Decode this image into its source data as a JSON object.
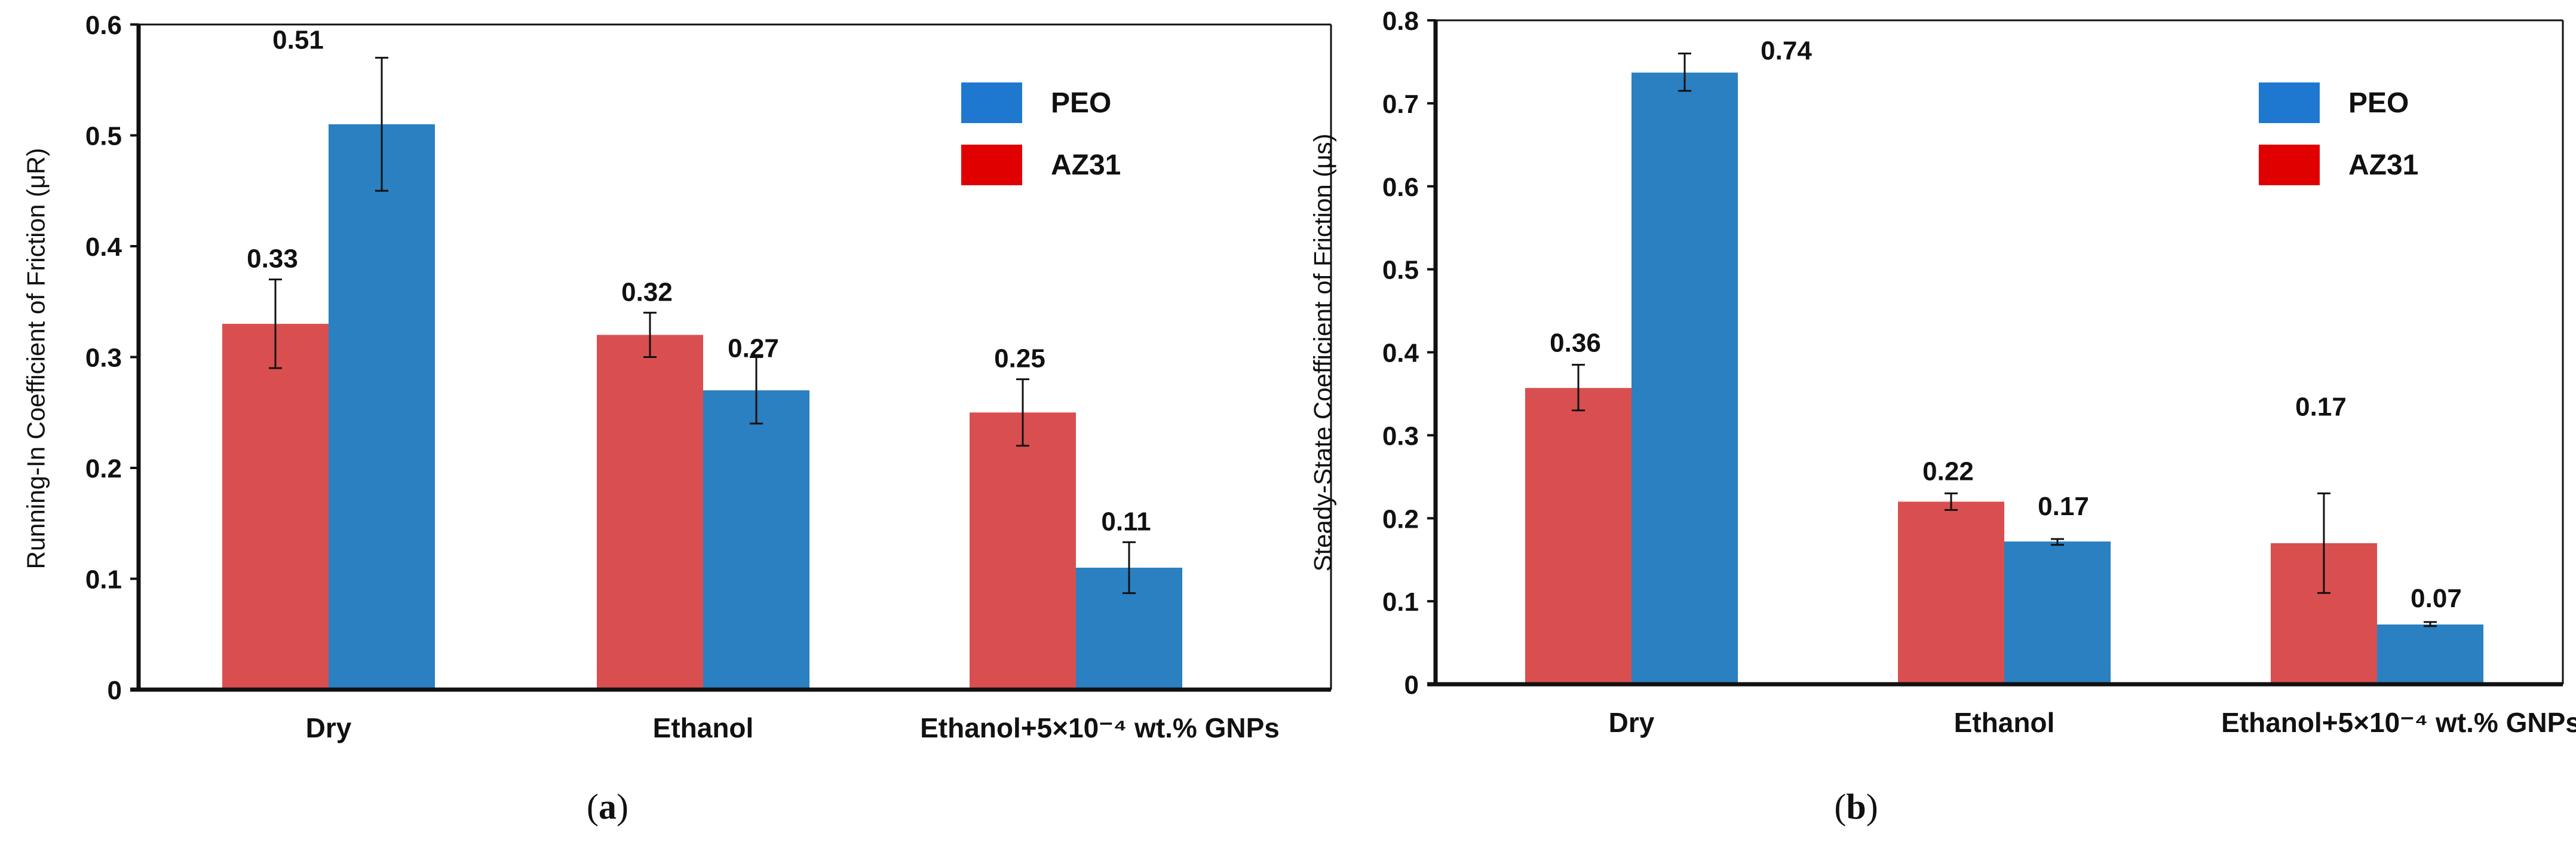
{
  "colors": {
    "AZ31": "#d94f4f",
    "PEO": "#2a80c0",
    "legend_AZ31": "#e00000",
    "legend_PEO": "#1f78d0"
  },
  "chart_data": [
    {
      "type": "bar",
      "caption_prefix": "(",
      "caption": "a",
      "caption_suffix": ")",
      "ylabel": "Running-In Coefficient of Friction (μR)",
      "ylim": [
        0,
        0.6
      ],
      "yticks": [
        "0",
        "0.1",
        "0.2",
        "0.3",
        "0.4",
        "0.5",
        "0.6"
      ],
      "categories": [
        "Dry",
        "Ethanol",
        "Ethanol+5×10⁻⁴ wt.% GNPs"
      ],
      "legend": [
        "PEO",
        "AZ31"
      ],
      "legend_position": "top-right",
      "series": [
        {
          "name": "AZ31",
          "values": [
            0.33,
            0.32,
            0.25
          ],
          "labels": [
            "0.33",
            "0.32",
            "0.25"
          ],
          "err_low": [
            0.29,
            0.3,
            0.22
          ],
          "err_high": [
            0.37,
            0.34,
            0.28
          ]
        },
        {
          "name": "PEO",
          "values": [
            0.51,
            0.27,
            0.11
          ],
          "labels": [
            "0.51",
            "0.27",
            "0.11"
          ],
          "err_low": [
            0.45,
            0.24,
            0.087
          ],
          "err_high": [
            0.57,
            0.3,
            0.133
          ]
        }
      ]
    },
    {
      "type": "bar",
      "caption_prefix": "(",
      "caption": "b",
      "caption_suffix": ")",
      "ylabel": "Steady-State Coefficient of Friction (μs)",
      "ylim": [
        0,
        0.8
      ],
      "yticks": [
        "0",
        "0.1",
        "0.2",
        "0.3",
        "0.4",
        "0.5",
        "0.6",
        "0.7",
        "0.8"
      ],
      "categories": [
        "Dry",
        "Ethanol",
        "Ethanol+5×10⁻⁴ wt.% GNPs"
      ],
      "legend": [
        "PEO",
        "AZ31"
      ],
      "legend_position": "top-right",
      "series": [
        {
          "name": "AZ31",
          "values": [
            0.357,
            0.22,
            0.17
          ],
          "labels": [
            "0.36",
            "0.22",
            "0.17"
          ],
          "err_low": [
            0.33,
            0.21,
            0.11
          ],
          "err_high": [
            0.385,
            0.23,
            0.23
          ]
        },
        {
          "name": "PEO",
          "values": [
            0.737,
            0.172,
            0.072
          ],
          "labels": [
            "0.74",
            "0.17",
            "0.07"
          ],
          "err_low": [
            0.715,
            0.168,
            0.07
          ],
          "err_high": [
            0.76,
            0.175,
            0.075
          ]
        }
      ]
    }
  ]
}
